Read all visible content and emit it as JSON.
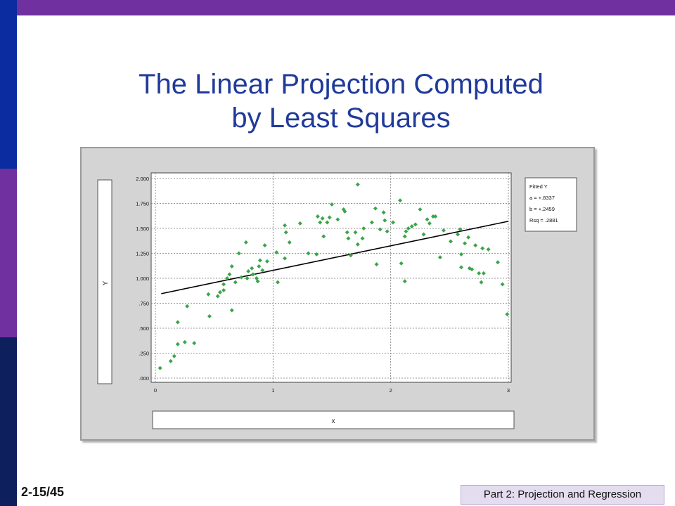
{
  "slide": {
    "title_line1": "The Linear Projection Computed",
    "title_line2": "by Least Squares",
    "number": "2-15/45",
    "footer": "Part 2: Projection and Regression"
  },
  "theme": {
    "top_bar": "#7030a0",
    "side_colors": [
      "#0a2ca0",
      "#7030a0",
      "#0d1f5c"
    ],
    "title_color": "#1f3a9a"
  },
  "chart_data": {
    "type": "scatter",
    "xlabel": "x",
    "ylabel": "Y",
    "xlim": [
      0,
      3
    ],
    "ylim": [
      0,
      2
    ],
    "x_ticks": [
      0,
      1,
      2,
      3
    ],
    "x_tick_labels": [
      "0",
      "1",
      "2",
      "3"
    ],
    "y_ticks": [
      0,
      0.25,
      0.5,
      0.75,
      1.0,
      1.25,
      1.5,
      1.75,
      2.0
    ],
    "y_tick_labels": [
      ".000",
      ".250",
      ".500",
      ".750",
      "1.000",
      "1.250",
      "1.500",
      "1.750",
      "2.000"
    ],
    "grid": true,
    "legend_position": "right",
    "legend": {
      "title": "Fitted Y",
      "entries": [
        "a = +.8337",
        "b = +.2459",
        "Rsq = .2881"
      ]
    },
    "fit_line": {
      "intercept": 0.8337,
      "slope": 0.2459,
      "x_range": [
        0.05,
        3.0
      ]
    },
    "point_color": "#3aa64a",
    "line_color": "#000000",
    "points": [
      [
        0.04,
        0.1
      ],
      [
        0.13,
        0.17
      ],
      [
        0.16,
        0.22
      ],
      [
        0.19,
        0.34
      ],
      [
        0.19,
        0.56
      ],
      [
        0.25,
        0.36
      ],
      [
        0.27,
        0.72
      ],
      [
        0.33,
        0.35
      ],
      [
        0.45,
        0.84
      ],
      [
        0.46,
        0.62
      ],
      [
        0.53,
        0.82
      ],
      [
        0.55,
        0.86
      ],
      [
        0.58,
        0.88
      ],
      [
        0.58,
        0.94
      ],
      [
        0.61,
        1.0
      ],
      [
        0.63,
        1.04
      ],
      [
        0.65,
        1.12
      ],
      [
        0.65,
        0.68
      ],
      [
        0.68,
        0.96
      ],
      [
        0.71,
        1.25
      ],
      [
        0.73,
        1.01
      ],
      [
        0.77,
        1.36
      ],
      [
        0.78,
        1.0
      ],
      [
        0.79,
        1.07
      ],
      [
        0.82,
        1.1
      ],
      [
        0.83,
        1.04
      ],
      [
        0.86,
        1.0
      ],
      [
        0.87,
        0.97
      ],
      [
        0.88,
        1.12
      ],
      [
        0.89,
        1.18
      ],
      [
        0.91,
        1.08
      ],
      [
        0.93,
        1.33
      ],
      [
        0.95,
        1.17
      ],
      [
        1.03,
        1.26
      ],
      [
        1.04,
        0.96
      ],
      [
        1.1,
        1.2
      ],
      [
        1.1,
        1.53
      ],
      [
        1.11,
        1.46
      ],
      [
        1.14,
        1.36
      ],
      [
        1.23,
        1.55
      ],
      [
        1.3,
        1.25
      ],
      [
        1.37,
        1.24
      ],
      [
        1.38,
        1.62
      ],
      [
        1.4,
        1.56
      ],
      [
        1.42,
        1.6
      ],
      [
        1.43,
        1.42
      ],
      [
        1.46,
        1.56
      ],
      [
        1.48,
        1.61
      ],
      [
        1.5,
        1.74
      ],
      [
        1.55,
        1.59
      ],
      [
        1.6,
        1.69
      ],
      [
        1.61,
        1.67
      ],
      [
        1.63,
        1.46
      ],
      [
        1.64,
        1.4
      ],
      [
        1.66,
        1.23
      ],
      [
        1.7,
        1.46
      ],
      [
        1.72,
        1.94
      ],
      [
        1.72,
        1.34
      ],
      [
        1.76,
        1.4
      ],
      [
        1.77,
        1.5
      ],
      [
        1.84,
        1.56
      ],
      [
        1.87,
        1.7
      ],
      [
        1.88,
        1.14
      ],
      [
        1.91,
        1.49
      ],
      [
        1.94,
        1.66
      ],
      [
        1.95,
        1.58
      ],
      [
        1.97,
        1.47
      ],
      [
        2.02,
        1.56
      ],
      [
        2.08,
        1.78
      ],
      [
        2.09,
        1.15
      ],
      [
        2.12,
        1.42
      ],
      [
        2.12,
        0.97
      ],
      [
        2.13,
        1.47
      ],
      [
        2.15,
        1.5
      ],
      [
        2.18,
        1.52
      ],
      [
        2.21,
        1.54
      ],
      [
        2.25,
        1.69
      ],
      [
        2.28,
        1.44
      ],
      [
        2.31,
        1.59
      ],
      [
        2.33,
        1.55
      ],
      [
        2.36,
        1.62
      ],
      [
        2.38,
        1.62
      ],
      [
        2.42,
        1.21
      ],
      [
        2.45,
        1.48
      ],
      [
        2.51,
        1.37
      ],
      [
        2.57,
        1.44
      ],
      [
        2.59,
        1.49
      ],
      [
        2.6,
        1.24
      ],
      [
        2.6,
        1.11
      ],
      [
        2.63,
        1.35
      ],
      [
        2.66,
        1.41
      ],
      [
        2.67,
        1.1
      ],
      [
        2.69,
        1.09
      ],
      [
        2.72,
        1.33
      ],
      [
        2.75,
        1.05
      ],
      [
        2.77,
        0.96
      ],
      [
        2.78,
        1.3
      ],
      [
        2.79,
        1.05
      ],
      [
        2.83,
        1.29
      ],
      [
        2.91,
        1.16
      ],
      [
        2.95,
        0.94
      ],
      [
        2.99,
        0.64
      ]
    ]
  }
}
